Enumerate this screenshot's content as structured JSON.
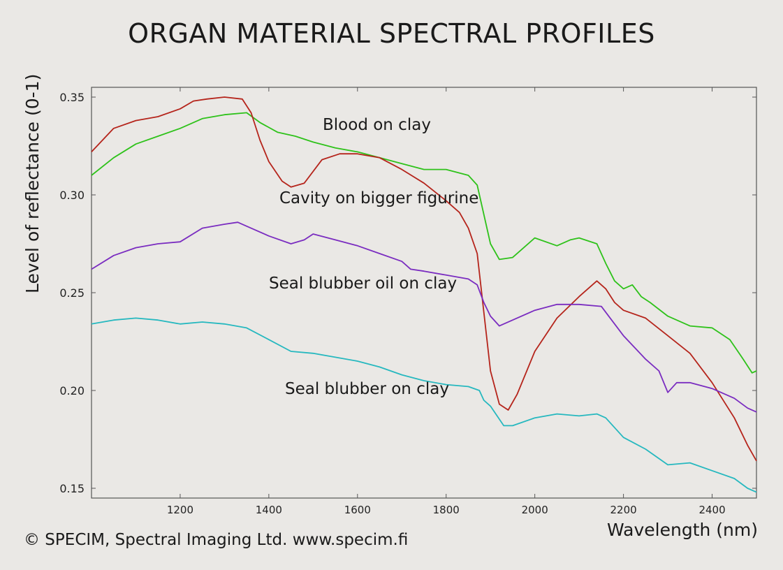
{
  "title": "ORGAN MATERIAL SPECTRAL PROFILES",
  "copyright": "© SPECIM, Spectral Imaging Ltd. www.specim.fi",
  "colors": {
    "background": "#eae8e5",
    "axis": "#555555",
    "blood_on_clay": "#2ec21a",
    "cavity_on_bigger_figurine": "#b5241b",
    "seal_blubber_oil_on_clay": "#7a2cc0",
    "seal_blubber_on_clay": "#26b8bf"
  },
  "chart_data": {
    "type": "line",
    "title": "ORGAN MATERIAL SPECTRAL PROFILES",
    "xlabel": "Wavelength (nm)",
    "ylabel": "Level of reflectance (0-1)",
    "xlim": [
      1000,
      2500
    ],
    "ylim": [
      0.145,
      0.355
    ],
    "xticks": [
      1200,
      1400,
      1600,
      1800,
      2000,
      2200,
      2400
    ],
    "xtick_labels": [
      "1200",
      "1400",
      "1600",
      "1800",
      "2000",
      "2200",
      "2400"
    ],
    "yticks": [
      0.15,
      0.2,
      0.25,
      0.3,
      0.35
    ],
    "ytick_labels": [
      "0.15",
      "0.20",
      "0.25",
      "0.30",
      "0.35"
    ],
    "grid": false,
    "legend": "inline labels",
    "series": [
      {
        "name": "Blood on clay",
        "color": "#2ec21a",
        "x": [
          1000,
          1050,
          1100,
          1150,
          1200,
          1250,
          1300,
          1350,
          1380,
          1420,
          1460,
          1500,
          1550,
          1600,
          1650,
          1700,
          1750,
          1800,
          1850,
          1870,
          1885,
          1900,
          1920,
          1950,
          2000,
          2050,
          2080,
          2100,
          2140,
          2160,
          2180,
          2200,
          2220,
          2240,
          2260,
          2300,
          2350,
          2400,
          2440,
          2470,
          2490,
          2500
        ],
        "values": [
          0.31,
          0.319,
          0.326,
          0.33,
          0.334,
          0.339,
          0.341,
          0.342,
          0.337,
          0.332,
          0.33,
          0.327,
          0.324,
          0.322,
          0.319,
          0.316,
          0.313,
          0.313,
          0.31,
          0.305,
          0.29,
          0.275,
          0.267,
          0.268,
          0.278,
          0.274,
          0.277,
          0.278,
          0.275,
          0.265,
          0.256,
          0.252,
          0.254,
          0.248,
          0.245,
          0.238,
          0.233,
          0.232,
          0.226,
          0.216,
          0.209,
          0.21
        ]
      },
      {
        "name": "Cavity on bigger figurine",
        "color": "#b5241b",
        "x": [
          1000,
          1050,
          1100,
          1150,
          1200,
          1230,
          1260,
          1300,
          1340,
          1360,
          1380,
          1400,
          1430,
          1450,
          1480,
          1520,
          1560,
          1600,
          1650,
          1700,
          1750,
          1800,
          1830,
          1850,
          1870,
          1885,
          1900,
          1920,
          1940,
          1960,
          2000,
          2050,
          2100,
          2140,
          2160,
          2180,
          2200,
          2250,
          2300,
          2350,
          2400,
          2450,
          2480,
          2500
        ],
        "values": [
          0.322,
          0.334,
          0.338,
          0.34,
          0.344,
          0.348,
          0.349,
          0.35,
          0.349,
          0.342,
          0.328,
          0.317,
          0.307,
          0.304,
          0.306,
          0.318,
          0.321,
          0.321,
          0.319,
          0.313,
          0.306,
          0.297,
          0.291,
          0.283,
          0.27,
          0.24,
          0.21,
          0.193,
          0.19,
          0.198,
          0.22,
          0.237,
          0.248,
          0.256,
          0.252,
          0.245,
          0.241,
          0.237,
          0.228,
          0.219,
          0.204,
          0.186,
          0.172,
          0.164
        ]
      },
      {
        "name": "Seal blubber oil on clay",
        "color": "#7a2cc0",
        "x": [
          1000,
          1050,
          1100,
          1150,
          1200,
          1250,
          1300,
          1330,
          1350,
          1400,
          1450,
          1480,
          1500,
          1550,
          1600,
          1650,
          1700,
          1720,
          1750,
          1800,
          1850,
          1870,
          1885,
          1900,
          1920,
          1950,
          2000,
          2050,
          2100,
          2150,
          2170,
          2200,
          2250,
          2280,
          2300,
          2320,
          2350,
          2400,
          2450,
          2480,
          2500
        ],
        "values": [
          0.262,
          0.269,
          0.273,
          0.275,
          0.276,
          0.283,
          0.285,
          0.286,
          0.284,
          0.279,
          0.275,
          0.277,
          0.28,
          0.277,
          0.274,
          0.27,
          0.266,
          0.262,
          0.261,
          0.259,
          0.257,
          0.254,
          0.245,
          0.238,
          0.233,
          0.236,
          0.241,
          0.244,
          0.244,
          0.243,
          0.237,
          0.228,
          0.216,
          0.21,
          0.199,
          0.204,
          0.204,
          0.201,
          0.196,
          0.191,
          0.189
        ]
      },
      {
        "name": "Seal blubber on clay",
        "color": "#26b8bf",
        "x": [
          1000,
          1050,
          1100,
          1150,
          1200,
          1250,
          1300,
          1350,
          1400,
          1450,
          1500,
          1550,
          1600,
          1650,
          1700,
          1750,
          1800,
          1850,
          1875,
          1885,
          1900,
          1930,
          1950,
          2000,
          2050,
          2100,
          2140,
          2160,
          2200,
          2250,
          2300,
          2350,
          2400,
          2450,
          2480,
          2500
        ],
        "values": [
          0.234,
          0.236,
          0.237,
          0.236,
          0.234,
          0.235,
          0.234,
          0.232,
          0.226,
          0.22,
          0.219,
          0.217,
          0.215,
          0.212,
          0.208,
          0.205,
          0.203,
          0.202,
          0.2,
          0.195,
          0.192,
          0.182,
          0.182,
          0.186,
          0.188,
          0.187,
          0.188,
          0.186,
          0.176,
          0.17,
          0.162,
          0.163,
          0.159,
          0.155,
          0.15,
          0.148
        ]
      }
    ]
  }
}
